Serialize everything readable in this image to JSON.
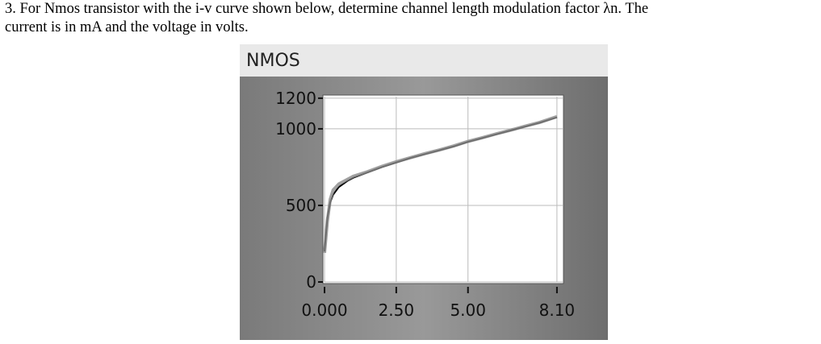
{
  "question": {
    "line1": "3.  For Nmos transistor with the i-v curve shown below, determine channel length modulation factor λn. The",
    "line2": "current is in mA and the voltage in volts."
  },
  "chart_data": {
    "type": "line",
    "title": "NMOS",
    "x": [
      0.0,
      0.1,
      0.2,
      0.3,
      0.5,
      0.8,
      1.0,
      1.5,
      2.0,
      2.5,
      3.0,
      3.5,
      4.0,
      4.5,
      5.0,
      5.5,
      6.0,
      6.5,
      7.0,
      7.5,
      8.1
    ],
    "series": [
      {
        "color": "#000000",
        "values": [
          200,
          420,
          520,
          570,
          620,
          660,
          680,
          715,
          750,
          780,
          810,
          835,
          860,
          885,
          915,
          940,
          965,
          990,
          1015,
          1040,
          1075
        ]
      },
      {
        "color": "#8a8a8a",
        "values": [
          190,
          400,
          540,
          600,
          640,
          670,
          690,
          720,
          755,
          785,
          812,
          838,
          862,
          888,
          918,
          942,
          968,
          992,
          1018,
          1042,
          1080
        ]
      }
    ],
    "xlim": [
      0,
      8.3
    ],
    "ylim": [
      0,
      1210
    ],
    "xticks": [
      {
        "value": 0,
        "label": "0.000"
      },
      {
        "value": 2.5,
        "label": "2.50"
      },
      {
        "value": 5,
        "label": "5.00"
      },
      {
        "value": 8.1,
        "label": "8.10"
      }
    ],
    "yticks": [
      1200,
      1000,
      500,
      0
    ],
    "grid": true
  }
}
